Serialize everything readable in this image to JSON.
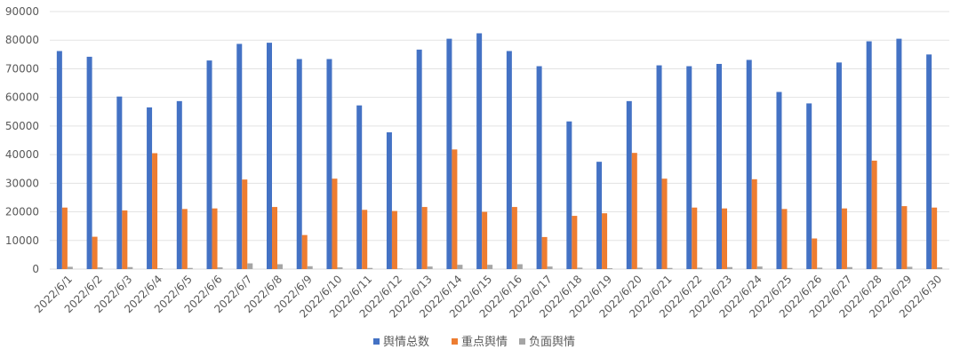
{
  "chart_data": {
    "type": "bar",
    "title": "",
    "xlabel": "",
    "ylabel": "",
    "ylim": [
      0,
      90000
    ],
    "yticks": [
      0,
      10000,
      20000,
      30000,
      40000,
      50000,
      60000,
      70000,
      80000,
      90000
    ],
    "grid": true,
    "legend_position": "bottom",
    "categories": [
      "2022/6/1",
      "2022/6/2",
      "2022/6/3",
      "2022/6/4",
      "2022/6/5",
      "2022/6/6",
      "2022/6/7",
      "2022/6/8",
      "2022/6/9",
      "2022/6/10",
      "2022/6/11",
      "2022/6/12",
      "2022/6/13",
      "2022/6/14",
      "2022/6/15",
      "2022/6/16",
      "2022/6/17",
      "2022/6/18",
      "2022/6/19",
      "2022/6/20",
      "2022/6/21",
      "2022/6/22",
      "2022/6/23",
      "2022/6/24",
      "2022/6/25",
      "2022/6/26",
      "2022/6/27",
      "2022/6/28",
      "2022/6/29",
      "2022/6/30"
    ],
    "series": [
      {
        "name": "舆情总数",
        "color": "#4472C4",
        "values": [
          76200,
          74200,
          60300,
          56500,
          58700,
          72900,
          78700,
          79100,
          73400,
          73400,
          57200,
          47800,
          76700,
          80500,
          82400,
          76200,
          70900,
          51600,
          37500,
          58700,
          71200,
          70900,
          71700,
          73100,
          61900,
          57900,
          72200,
          79600,
          80500,
          75000
        ]
      },
      {
        "name": "重点舆情",
        "color": "#ED7D31",
        "values": [
          21500,
          11300,
          20500,
          40500,
          21000,
          21200,
          31300,
          21700,
          11900,
          31600,
          20700,
          20300,
          21700,
          41800,
          20000,
          21700,
          11200,
          18600,
          19500,
          40600,
          31600,
          21500,
          21200,
          31400,
          21000,
          10700,
          21200,
          37900,
          22000,
          21500
        ]
      },
      {
        "name": "负面舆情",
        "color": "#A5A5A5",
        "values": [
          800,
          600,
          700,
          300,
          400,
          600,
          2000,
          1700,
          1000,
          600,
          400,
          200,
          900,
          1500,
          1500,
          1700,
          900,
          500,
          300,
          500,
          400,
          500,
          700,
          900,
          400,
          500,
          700,
          600,
          800,
          600
        ]
      }
    ]
  }
}
